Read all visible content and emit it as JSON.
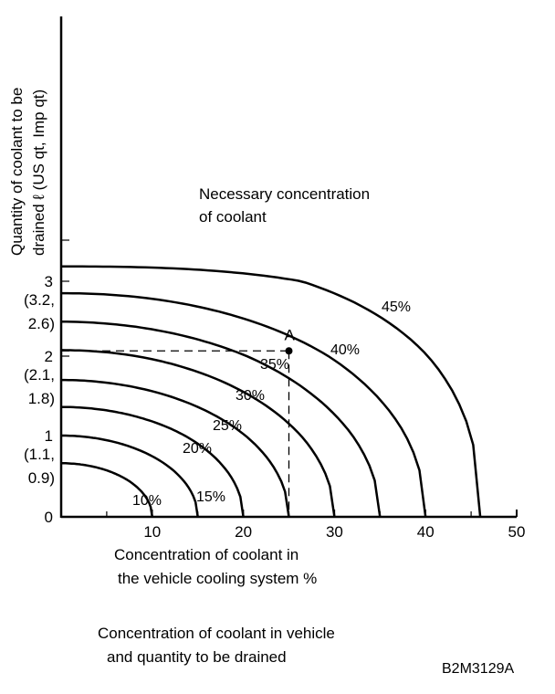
{
  "chart_data": {
    "type": "line",
    "title": "Necessary concentration of coolant",
    "title_lines": [
      "Necessary concentration",
      "of coolant"
    ],
    "xlabel_lines": [
      "Concentration of coolant in",
      "the vehicle cooling system %"
    ],
    "ylabel_lines": [
      "Quantity of coolant to be",
      "drained ℓ (US qt, Imp qt)"
    ],
    "caption_lines": [
      "Concentration of coolant in vehicle",
      "and quantity to be drained"
    ],
    "figure_code": "B2M3129A",
    "xlim": [
      0,
      50
    ],
    "ylim": [
      0,
      4
    ],
    "x_ticks": [
      {
        "value": 10,
        "label": "10"
      },
      {
        "value": 20,
        "label": "20"
      },
      {
        "value": 30,
        "label": "30"
      },
      {
        "value": 40,
        "label": "40"
      },
      {
        "value": 50,
        "label": "50"
      }
    ],
    "x_minor_ticks": [
      5,
      15,
      25,
      35,
      45
    ],
    "y_ticks": [
      {
        "value": 0,
        "label": "0",
        "alt": ""
      },
      {
        "value": 1,
        "label": "1",
        "alt_lines": [
          "(1.1,",
          "0.9)"
        ]
      },
      {
        "value": 2,
        "label": "2",
        "alt_lines": [
          "(2.1,",
          "1.8)"
        ]
      },
      {
        "value": 3,
        "label": "3",
        "alt_lines": [
          "(3.2,",
          "2.6)"
        ]
      },
      {
        "value": 4,
        "label": "",
        "alt_lines": []
      }
    ],
    "series": [
      {
        "name": "10%",
        "y_at_x0": 0.66,
        "x_at_y0": 10,
        "exponent": 2.0
      },
      {
        "name": "15%",
        "y_at_x0": 1.0,
        "x_at_y0": 15,
        "exponent": 2.0
      },
      {
        "name": "20%",
        "y_at_x0": 1.36,
        "x_at_y0": 20,
        "exponent": 2.0
      },
      {
        "name": "25%",
        "y_at_x0": 1.7,
        "x_at_y0": 25,
        "exponent": 2.0
      },
      {
        "name": "30%",
        "y_at_x0": 2.08,
        "x_at_y0": 30,
        "exponent": 2.0
      },
      {
        "name": "35%",
        "y_at_x0": 2.46,
        "x_at_y0": 35,
        "exponent": 2.0
      },
      {
        "name": "40%",
        "y_at_x0": 2.84,
        "x_at_y0": 40,
        "exponent": 2.1
      },
      {
        "name": "45%",
        "y_at_x0": 3.36,
        "x_at_y0": 46,
        "exponent": 2.6
      }
    ],
    "annotation": {
      "label": "A",
      "x": 25,
      "y": 2.07
    }
  }
}
